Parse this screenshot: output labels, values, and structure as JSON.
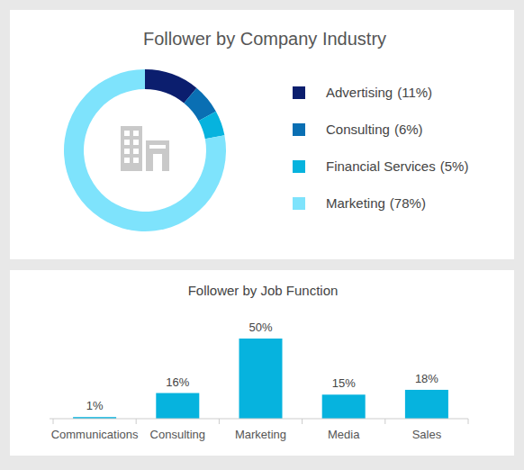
{
  "chart_data": [
    {
      "type": "pie",
      "title": "Follower by Company Industry",
      "categories": [
        "Advertising",
        "Consulting",
        "Financial Services",
        "Marketing"
      ],
      "values": [
        11,
        6,
        5,
        78
      ],
      "value_labels": [
        "(11%)",
        "(6%)",
        "(5%)",
        "(78%)"
      ],
      "colors": [
        "#0b1e6e",
        "#0a6fb3",
        "#06b3de",
        "#7ee3fc"
      ],
      "legend": "right"
    },
    {
      "type": "bar",
      "title": "Follower by Job Function",
      "categories": [
        "Communications",
        "Consulting",
        "Marketing",
        "Media",
        "Sales"
      ],
      "values": [
        1,
        16,
        50,
        15,
        18
      ],
      "value_labels": [
        "1%",
        "16%",
        "50%",
        "15%",
        "18%"
      ],
      "color": "#06b3de",
      "ylim": [
        0,
        50
      ],
      "data_labels": true,
      "tick_labels": "x"
    }
  ]
}
